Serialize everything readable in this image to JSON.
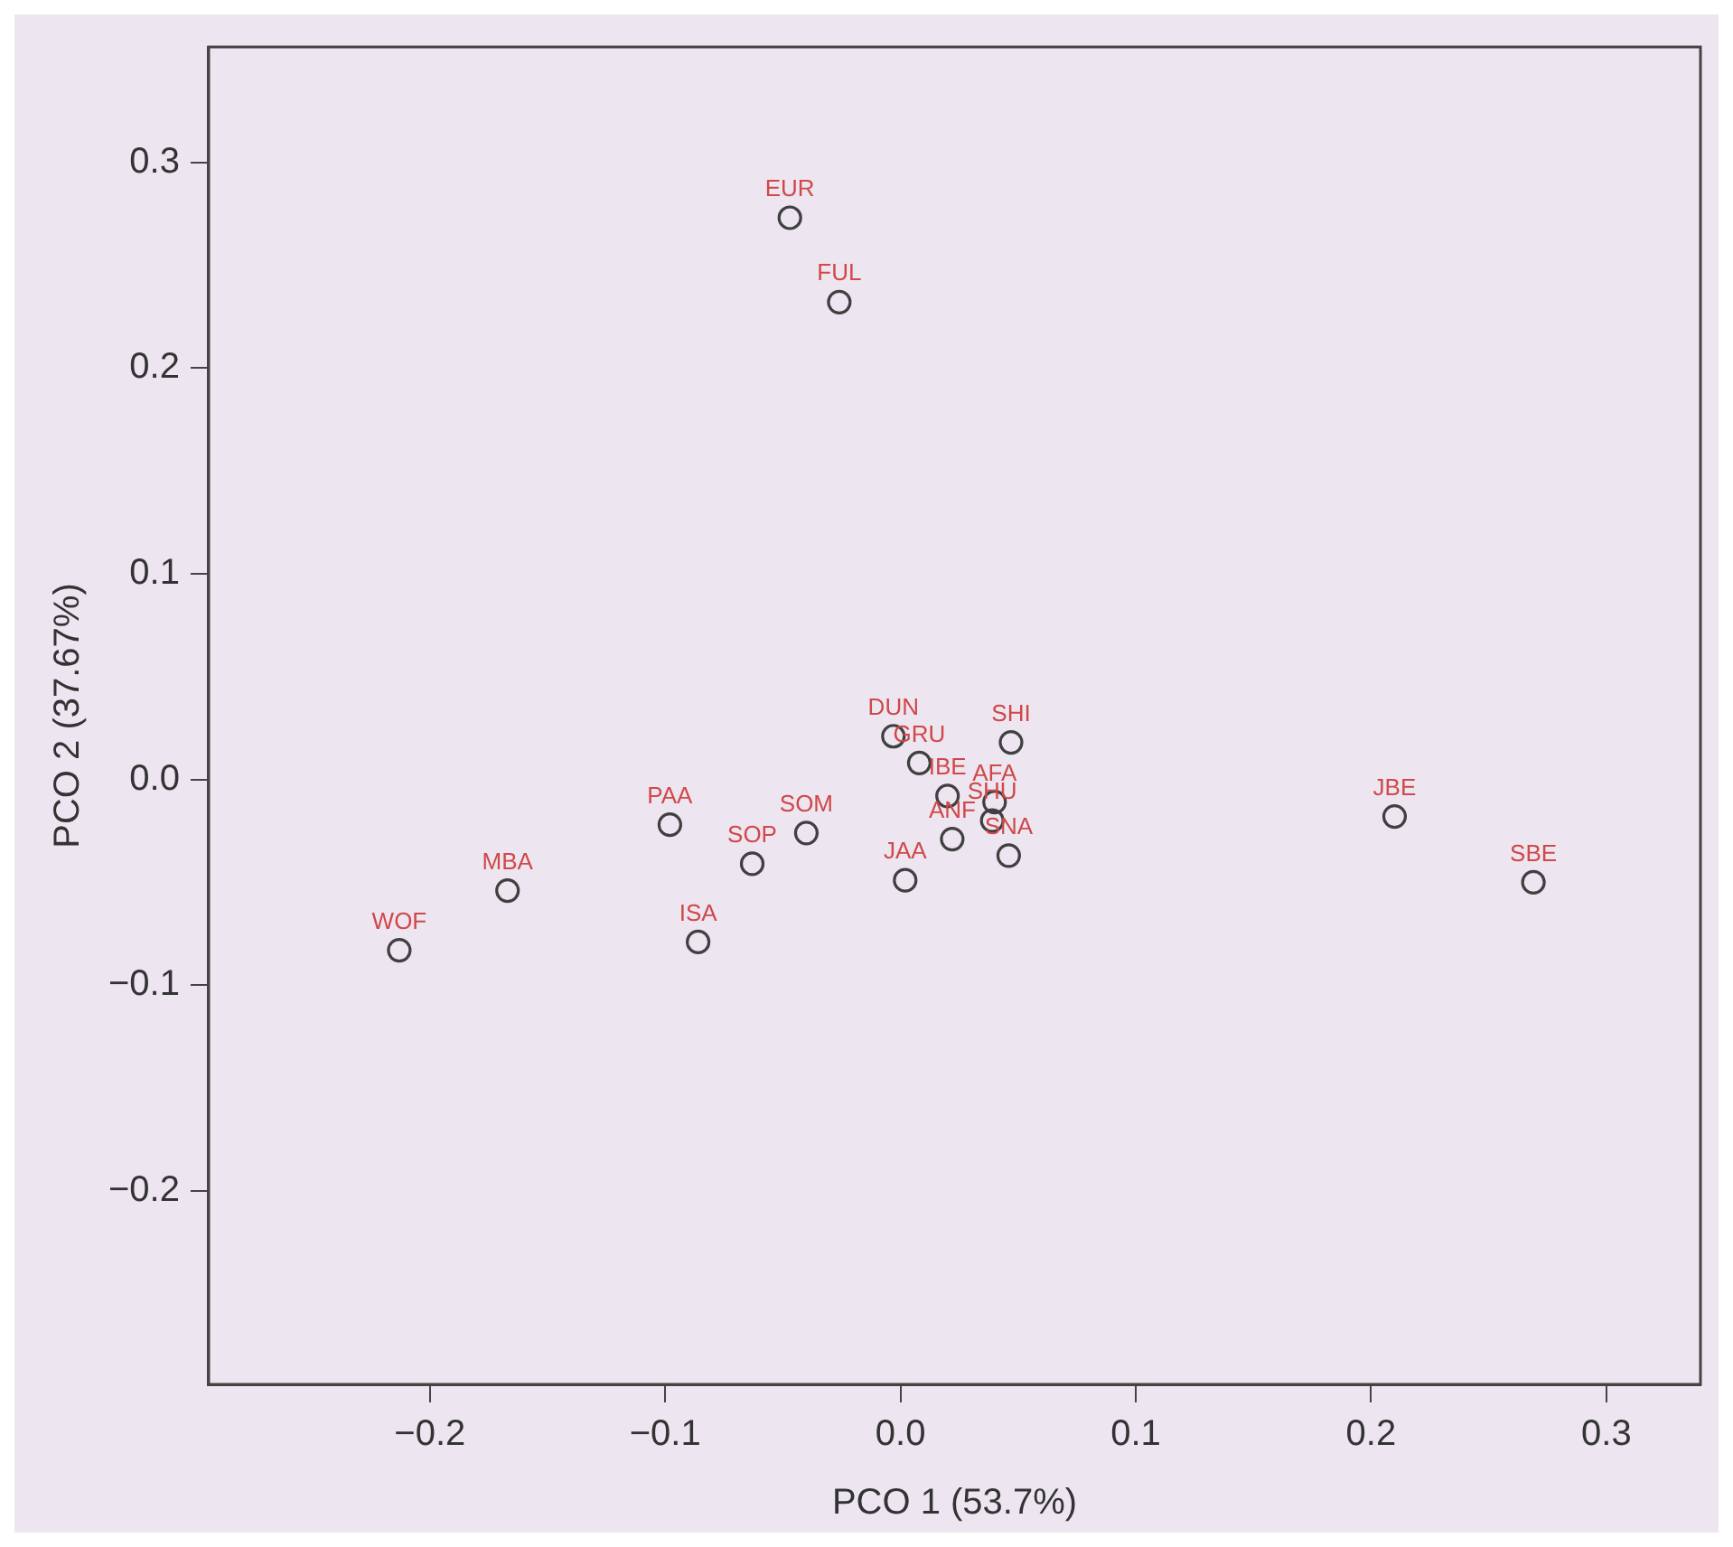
{
  "chart_data": {
    "type": "scatter",
    "xlabel": "PCO 1 (53.7%)",
    "ylabel": "PCO 2 (37.67%)",
    "x": [
      -0.047,
      -0.026,
      -0.003,
      0.008,
      0.02,
      0.047,
      0.04,
      0.039,
      0.022,
      0.046,
      0.002,
      -0.04,
      -0.063,
      -0.098,
      -0.167,
      -0.213,
      -0.086,
      0.21,
      0.269
    ],
    "series": [
      {
        "color": "#404040",
        "values": [
          0.273,
          0.232,
          0.021,
          0.008,
          -0.008,
          0.018,
          -0.011,
          -0.02,
          -0.029,
          -0.037,
          -0.049,
          -0.026,
          -0.041,
          -0.022,
          -0.054,
          -0.083,
          -0.079,
          -0.018,
          -0.05
        ]
      }
    ],
    "annotations": [
      {
        "text": "EUR",
        "x": -0.047,
        "y": 0.273
      },
      {
        "text": "FUL",
        "x": -0.026,
        "y": 0.232
      },
      {
        "text": "DUN",
        "x": -0.003,
        "y": 0.021
      },
      {
        "text": "GRU",
        "x": 0.008,
        "y": 0.008
      },
      {
        "text": "IBE",
        "x": 0.02,
        "y": -0.008
      },
      {
        "text": "SHI",
        "x": 0.047,
        "y": 0.018
      },
      {
        "text": "AFA",
        "x": 0.04,
        "y": -0.011
      },
      {
        "text": "SHU",
        "x": 0.039,
        "y": -0.02
      },
      {
        "text": "ANF",
        "x": 0.022,
        "y": -0.029
      },
      {
        "text": "SNA",
        "x": 0.046,
        "y": -0.037
      },
      {
        "text": "JAA",
        "x": 0.002,
        "y": -0.049
      },
      {
        "text": "SOM",
        "x": -0.04,
        "y": -0.026
      },
      {
        "text": "SOP",
        "x": -0.063,
        "y": -0.041
      },
      {
        "text": "PAA",
        "x": -0.098,
        "y": -0.022
      },
      {
        "text": "MBA",
        "x": -0.167,
        "y": -0.054
      },
      {
        "text": "WOF",
        "x": -0.213,
        "y": -0.083
      },
      {
        "text": "ISA",
        "x": -0.086,
        "y": -0.079
      },
      {
        "text": "JBE",
        "x": 0.21,
        "y": -0.018
      },
      {
        "text": "SBE",
        "x": 0.269,
        "y": -0.05
      }
    ],
    "xlim": [
      -0.294,
      0.34
    ],
    "ylim": [
      -0.294,
      0.356
    ],
    "xticks": [
      {
        "value": -0.2,
        "label": "−0.2"
      },
      {
        "value": -0.1,
        "label": "−0.1"
      },
      {
        "value": 0,
        "label": "0.0"
      },
      {
        "value": 0.1,
        "label": "0.1"
      },
      {
        "value": 0.2,
        "label": "0.2"
      },
      {
        "value": 0.3,
        "label": "0.3"
      }
    ],
    "yticks": [
      {
        "value": -0.2,
        "label": "−0.2"
      },
      {
        "value": -0.1,
        "label": "−0.1"
      },
      {
        "value": 0,
        "label": "0.0"
      },
      {
        "value": 0.1,
        "label": "0.1"
      },
      {
        "value": 0.2,
        "label": "0.2"
      },
      {
        "value": 0.3,
        "label": "0.3"
      }
    ],
    "grid": false,
    "legend": false,
    "marker": "circle"
  }
}
